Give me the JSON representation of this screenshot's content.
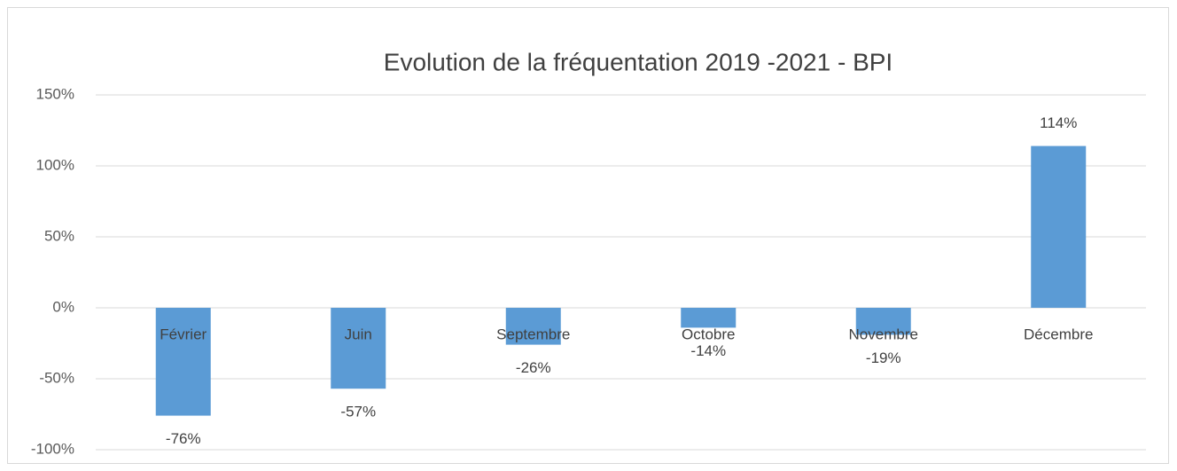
{
  "chart_data": {
    "type": "bar",
    "title": "Evolution de la fréquentation 2019 -2021 - BPI",
    "categories": [
      "Février",
      "Juin",
      "Septembre",
      "Octobre",
      "Novembre",
      "Décembre"
    ],
    "values": [
      -76,
      -57,
      -26,
      -14,
      -19,
      114
    ],
    "value_labels": [
      "-76%",
      "-57%",
      "-26%",
      "-14%",
      "-19%",
      "114%"
    ],
    "color": "#5b9bd5",
    "ylim": [
      -100,
      150
    ],
    "yticks": [
      {
        "value": -100,
        "label": "-100%"
      },
      {
        "value": -50,
        "label": "-50%"
      },
      {
        "value": 0,
        "label": "0%"
      },
      {
        "value": 50,
        "label": "50%"
      },
      {
        "value": 100,
        "label": "100%"
      },
      {
        "value": 150,
        "label": "150%"
      }
    ],
    "grid": true
  }
}
